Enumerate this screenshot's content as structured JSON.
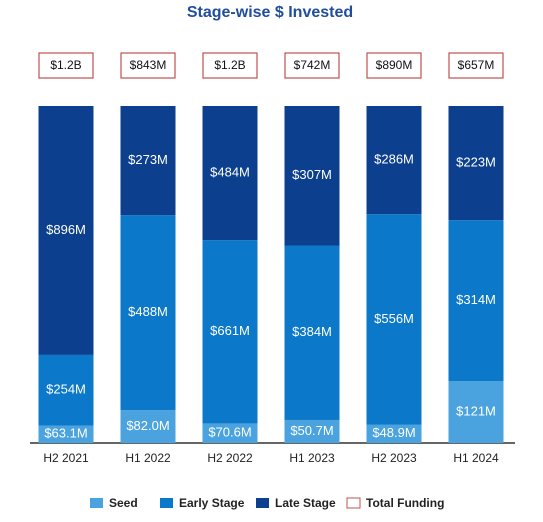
{
  "chart_data": {
    "type": "stacked_bar_100",
    "title": "Stage-wise $ Invested",
    "categories": [
      "H2 2021",
      "H1 2022",
      "H2 2022",
      "H1 2023",
      "H2 2023",
      "H1 2024"
    ],
    "series": [
      {
        "name": "Seed",
        "color": "#4aa3df",
        "values": [
          63.1,
          82.0,
          70.6,
          50.7,
          48.9,
          121
        ],
        "value_labels": [
          "$63.1M",
          "$82.0M",
          "$70.6M",
          "$50.7M",
          "$48.9M",
          "$121M"
        ]
      },
      {
        "name": "Early Stage",
        "color": "#0b78c9",
        "values": [
          254,
          488,
          661,
          384,
          556,
          314
        ],
        "value_labels": [
          "$254M",
          "$488M",
          "$661M",
          "$384M",
          "$556M",
          "$314M"
        ]
      },
      {
        "name": "Late Stage",
        "color": "#0c3f8e",
        "values": [
          896,
          273,
          484,
          307,
          286,
          223
        ],
        "value_labels": [
          "$896M",
          "$273M",
          "$484M",
          "$307M",
          "$286M",
          "$223M"
        ]
      }
    ],
    "total_funding": {
      "name": "Total Funding",
      "color": "#c0504d",
      "values": [
        1200,
        843,
        1200,
        742,
        890,
        657
      ],
      "value_labels": [
        "$1.2B",
        "$843M",
        "$1.2B",
        "$742M",
        "$890M",
        "$657M"
      ]
    },
    "legend": "bottom"
  }
}
